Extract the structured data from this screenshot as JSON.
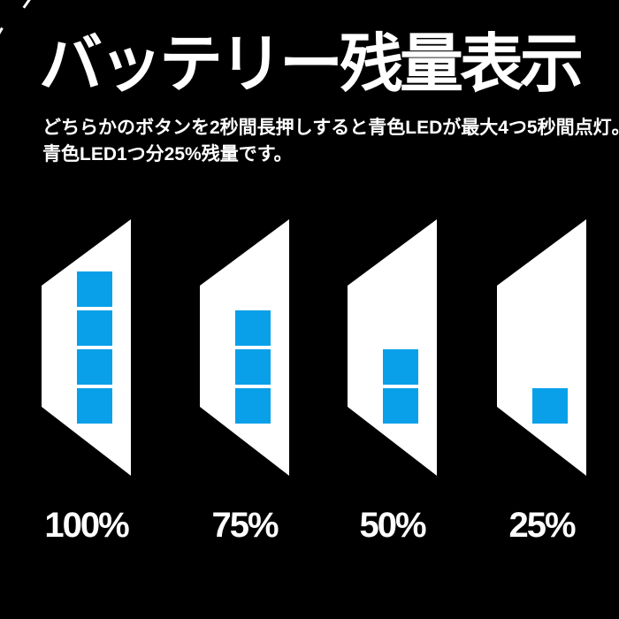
{
  "header": {
    "title": "バッテリー残量表示",
    "subtitle_line1": "どちらかのボタンを2秒間長押しすると青色LEDが最大4つ5秒間点灯。",
    "subtitle_line2": "青色LED1つ分25%残量です。"
  },
  "batteries": {
    "max_leds": 4,
    "levels": [
      {
        "label": "100%",
        "lit_leds": 4
      },
      {
        "label": "75%",
        "lit_leds": 3
      },
      {
        "label": "50%",
        "lit_leds": 2
      },
      {
        "label": "25%",
        "lit_leds": 1
      }
    ]
  },
  "colors": {
    "background": "#000000",
    "text": "#ffffff",
    "battery_body": "#ffffff",
    "led": "#09a0e9"
  }
}
